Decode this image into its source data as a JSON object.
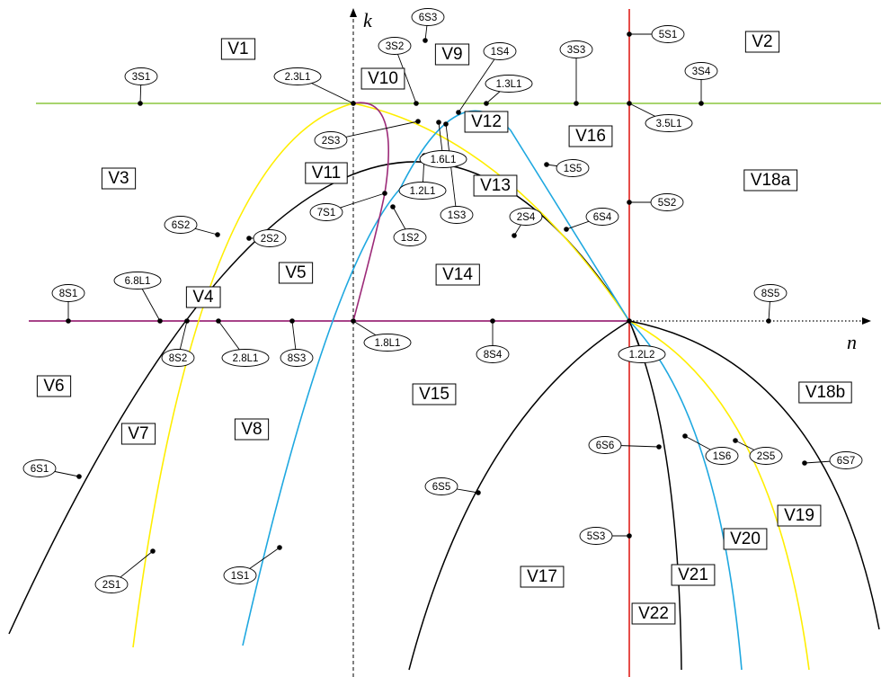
{
  "axes": {
    "x_label": "n",
    "y_label": "k"
  },
  "colors": {
    "black_curve": "#000000",
    "yellow_curve": "#ffee00",
    "blue_curve": "#1fa8e0",
    "purple_curve": "#9c2a78",
    "green_line": "#8cc63f",
    "red_line": "#e0201b",
    "magenta_axis": "#9c2a78"
  },
  "region_labels": [
    "V1",
    "V2",
    "V3",
    "V4",
    "V5",
    "V6",
    "V7",
    "V8",
    "V9",
    "V10",
    "V11",
    "V12",
    "V13",
    "V14",
    "V15",
    "V16",
    "V17",
    "V18a",
    "V18b",
    "V19",
    "V20",
    "V21",
    "V22"
  ],
  "point_labels": [
    "3S1",
    "2.3L1",
    "6S3",
    "3S2",
    "1S4",
    "3S3",
    "5S1",
    "3S4",
    "1.3L1",
    "3.5L1",
    "2S3",
    "1.6L1",
    "1S5",
    "7S1",
    "1.2L1",
    "1S3",
    "5S2",
    "2S4",
    "6S4",
    "6S2",
    "2S2",
    "1S2",
    "8S1",
    "6.8L1",
    "8S5",
    "8S2",
    "2.8L1",
    "8S3",
    "1.8L1",
    "8S4",
    "1.2L2",
    "6S6",
    "1S6",
    "2S5",
    "6S7",
    "6S1",
    "6S5",
    "5S3",
    "2S1",
    "1S1"
  ]
}
